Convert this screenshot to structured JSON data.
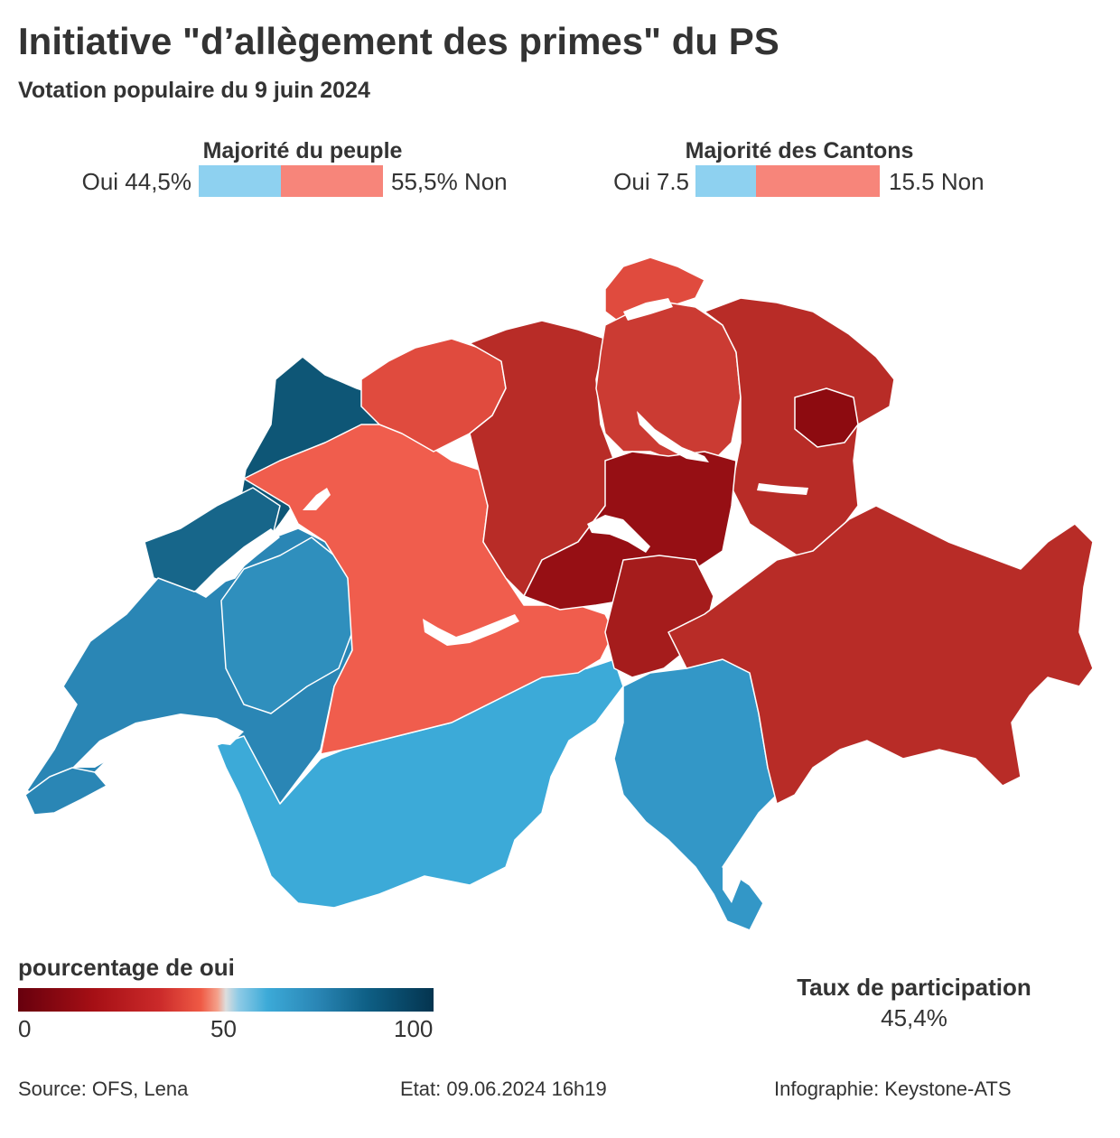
{
  "header": {
    "title": "Initiative \"d’allègement des primes\" du PS",
    "subtitle": "Votation populaire du 9 juin 2024"
  },
  "people": {
    "title": "Majorité du peuple",
    "yes_label": "Oui 44,5%",
    "no_label": "55,5% Non",
    "yes_share": 0.445,
    "yes_color": "#8ed1f0",
    "no_color": "#f7857a"
  },
  "cantons": {
    "title": "Majorité des Cantons",
    "yes_label": "Oui 7.5",
    "no_label": "15.5 Non",
    "yes_share": 0.326,
    "yes_color": "#8ed1f0",
    "no_color": "#f7857a"
  },
  "legend": {
    "title": "pourcentage de oui",
    "ticks": [
      "0",
      "50",
      "100"
    ]
  },
  "turnout": {
    "title": "Taux de participation",
    "value": "45,4%"
  },
  "footer": {
    "source": "Source: OFS, Lena",
    "state": "Etat: 09.06.2024 16h19",
    "credit": "Infographie: Keystone-ATS"
  }
}
